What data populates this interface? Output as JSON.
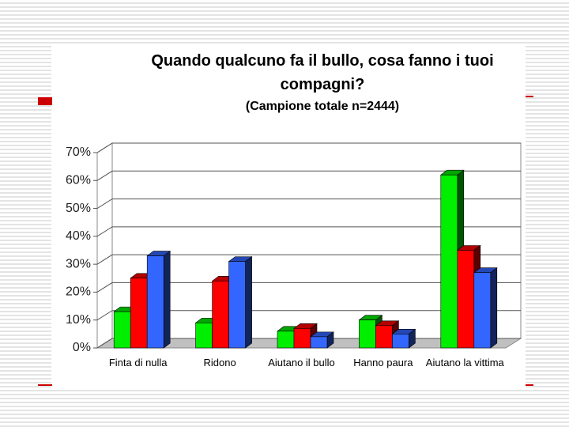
{
  "chart_data": {
    "type": "bar3d",
    "title": "Quando qualcuno fa il bullo, cosa fanno i tuoi compagni?",
    "subtitle": "(Campione totale n=2444)",
    "categories": [
      "Finta di nulla",
      "Ridono",
      "Aiutano il bullo",
      "Hanno paura",
      "Aiutano la vittima"
    ],
    "series": [
      {
        "color": "#00ee00",
        "values": [
          13,
          9,
          6,
          10,
          62
        ]
      },
      {
        "color": "#ff0000",
        "values": [
          25,
          24,
          7,
          8,
          35
        ]
      },
      {
        "color": "#3366ff",
        "values": [
          33,
          31,
          4,
          5,
          27
        ]
      }
    ],
    "ylim": [
      0,
      70
    ],
    "yticks": [
      {
        "value": 0,
        "label": "0%"
      },
      {
        "value": 10,
        "label": "10%"
      },
      {
        "value": 20,
        "label": "20%"
      },
      {
        "value": 30,
        "label": "30%"
      },
      {
        "value": 40,
        "label": "40%"
      },
      {
        "value": 50,
        "label": "50%"
      },
      {
        "value": 60,
        "label": "60%"
      },
      {
        "value": 70,
        "label": "70%"
      }
    ],
    "grid": true
  }
}
